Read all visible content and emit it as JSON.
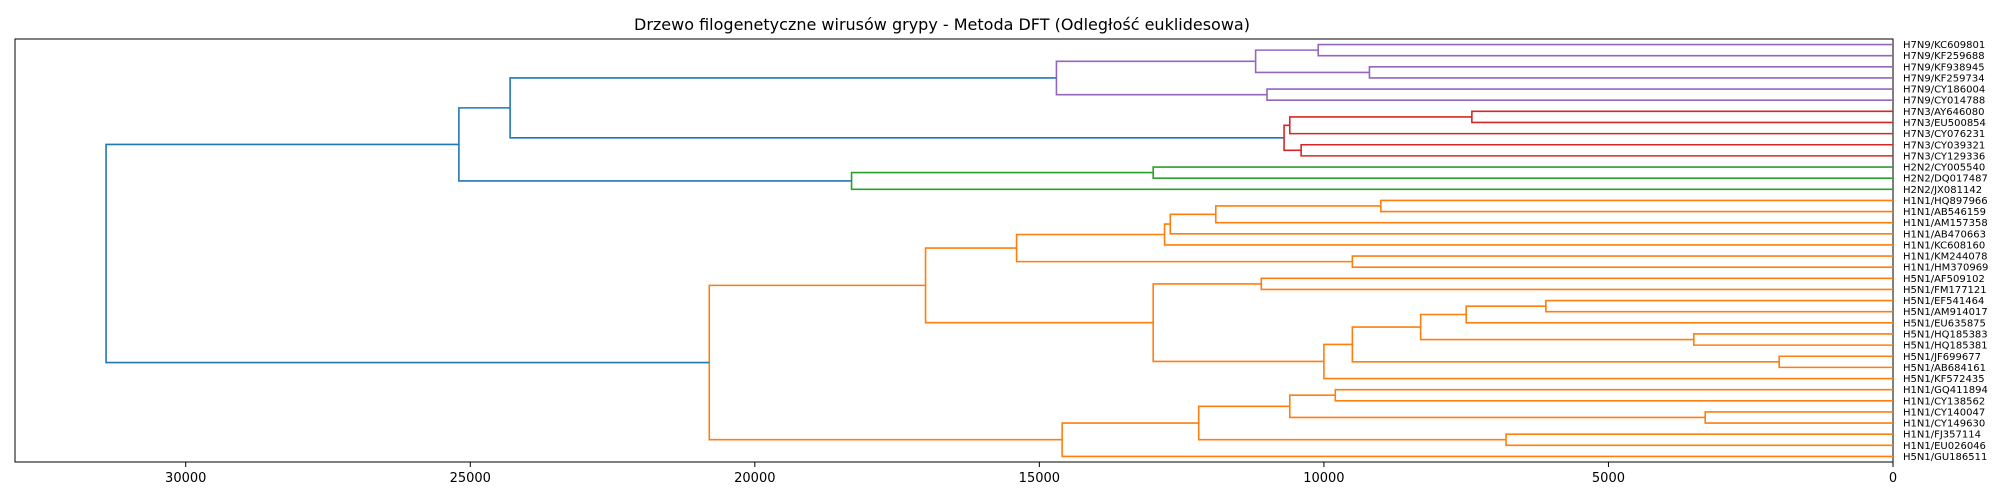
{
  "chart_data": {
    "type": "dendrogram",
    "title": "Drzewo filogenetyczne wirusów grypy - Metoda DFT (Odległość euklidesowa)",
    "orientation": "right",
    "xlim": [
      33000,
      0
    ],
    "xticks": [
      30000,
      25000,
      20000,
      15000,
      10000,
      5000,
      0
    ],
    "colors": {
      "blue": "#1f77b4",
      "orange": "#ff7f0e",
      "green": "#2ca02c",
      "red": "#d62728",
      "purple": "#9467bd"
    },
    "leaves": [
      "H7N9/KC609801",
      "H7N9/KF259688",
      "H7N9/KF938945",
      "H7N9/KF259734",
      "H7N9/CY186004",
      "H7N9/CY014788",
      "H7N3/AY646080",
      "H7N3/EU500854",
      "H7N3/CY076231",
      "H7N3/CY039321",
      "H7N3/CY129336",
      "H2N2/CY005540",
      "H2N2/DQ017487",
      "H2N2/JX081142",
      "H1N1/HQ897966",
      "H1N1/AB546159",
      "H1N1/AM157358",
      "H1N1/AB470663",
      "H1N1/KC608160",
      "H1N1/KM244078",
      "H1N1/HM370969",
      "H5N1/AF509102",
      "H5N1/FM177121",
      "H5N1/EF541464",
      "H5N1/AM914017",
      "H5N1/EU635875",
      "H5N1/HQ185383",
      "H5N1/HQ185381",
      "H5N1/JF699677",
      "H5N1/AB684161",
      "H5N1/KF572435",
      "H1N1/GQ411894",
      "H1N1/CY138562",
      "H1N1/CY140047",
      "H1N1/CY149630",
      "H1N1/FJ357114",
      "H1N1/EU026046",
      "H5N1/GU186511"
    ],
    "merges": [
      {
        "id": "p1",
        "height": 10100,
        "children": [
          0,
          1
        ],
        "color": "purple"
      },
      {
        "id": "p2",
        "height": 9200,
        "children": [
          2,
          3
        ],
        "color": "purple"
      },
      {
        "id": "p3",
        "height": 11200,
        "children": [
          "p1",
          "p2"
        ],
        "color": "purple"
      },
      {
        "id": "p4",
        "height": 11000,
        "children": [
          4,
          5
        ],
        "color": "purple"
      },
      {
        "id": "p5",
        "height": 14700,
        "children": [
          "p3",
          "p4"
        ],
        "color": "purple"
      },
      {
        "id": "r1",
        "height": 7400,
        "children": [
          6,
          7
        ],
        "color": "red"
      },
      {
        "id": "r2",
        "height": 10400,
        "children": [
          9,
          10
        ],
        "color": "red"
      },
      {
        "id": "r3",
        "height": 10600,
        "children": [
          "r1",
          8
        ],
        "color": "red"
      },
      {
        "id": "r4",
        "height": 10700,
        "children": [
          "r3",
          "r2"
        ],
        "color": "red"
      },
      {
        "id": "b1",
        "height": 24300,
        "children": [
          "p5",
          "r4"
        ],
        "color": "blue"
      },
      {
        "id": "g1",
        "height": 13000,
        "children": [
          11,
          12
        ],
        "color": "green"
      },
      {
        "id": "g2",
        "height": 18300,
        "children": [
          "g1",
          13
        ],
        "color": "green"
      },
      {
        "id": "b2",
        "height": 25200,
        "children": [
          "b1",
          "g2"
        ],
        "color": "blue"
      },
      {
        "id": "o1",
        "height": 9000,
        "children": [
          14,
          15
        ],
        "color": "orange"
      },
      {
        "id": "o2",
        "height": 11900,
        "children": [
          "o1",
          16
        ],
        "color": "orange"
      },
      {
        "id": "o3",
        "height": 12700,
        "children": [
          "o2",
          17
        ],
        "color": "orange"
      },
      {
        "id": "o4",
        "height": 12800,
        "children": [
          "o3",
          18
        ],
        "color": "orange"
      },
      {
        "id": "o5",
        "height": 9500,
        "children": [
          19,
          20
        ],
        "color": "orange"
      },
      {
        "id": "o6",
        "height": 15400,
        "children": [
          "o4",
          "o5"
        ],
        "color": "orange"
      },
      {
        "id": "o7",
        "height": 11100,
        "children": [
          21,
          22
        ],
        "color": "orange"
      },
      {
        "id": "o8",
        "height": 6100,
        "children": [
          23,
          24
        ],
        "color": "orange"
      },
      {
        "id": "o9",
        "height": 7500,
        "children": [
          "o8",
          25
        ],
        "color": "orange"
      },
      {
        "id": "o10",
        "height": 3500,
        "children": [
          26,
          27
        ],
        "color": "orange"
      },
      {
        "id": "o11",
        "height": 8300,
        "children": [
          "o9",
          "o10"
        ],
        "color": "orange"
      },
      {
        "id": "o12",
        "height": 2000,
        "children": [
          28,
          29
        ],
        "color": "orange"
      },
      {
        "id": "o13",
        "height": 9500,
        "children": [
          "o11",
          "o12"
        ],
        "color": "orange"
      },
      {
        "id": "o14",
        "height": 10000,
        "children": [
          "o13",
          30
        ],
        "color": "orange"
      },
      {
        "id": "o15",
        "height": 13000,
        "children": [
          "o7",
          "o14"
        ],
        "color": "orange"
      },
      {
        "id": "o16",
        "height": 17000,
        "children": [
          "o6",
          "o15"
        ],
        "color": "orange"
      },
      {
        "id": "o17",
        "height": 9800,
        "children": [
          31,
          32
        ],
        "color": "orange"
      },
      {
        "id": "o18",
        "height": 3300,
        "children": [
          33,
          34
        ],
        "color": "orange"
      },
      {
        "id": "o19",
        "height": 10600,
        "children": [
          "o17",
          "o18"
        ],
        "color": "orange"
      },
      {
        "id": "o20",
        "height": 6800,
        "children": [
          35,
          36
        ],
        "color": "orange"
      },
      {
        "id": "o21",
        "height": 12200,
        "children": [
          "o19",
          "o20"
        ],
        "color": "orange"
      },
      {
        "id": "o22",
        "height": 14600,
        "children": [
          "o21",
          37
        ],
        "color": "orange"
      },
      {
        "id": "o23",
        "height": 20800,
        "children": [
          "o16",
          "o22"
        ],
        "color": "orange"
      },
      {
        "id": "root",
        "height": 31400,
        "children": [
          "b2",
          "o23"
        ],
        "color": "blue"
      }
    ]
  }
}
